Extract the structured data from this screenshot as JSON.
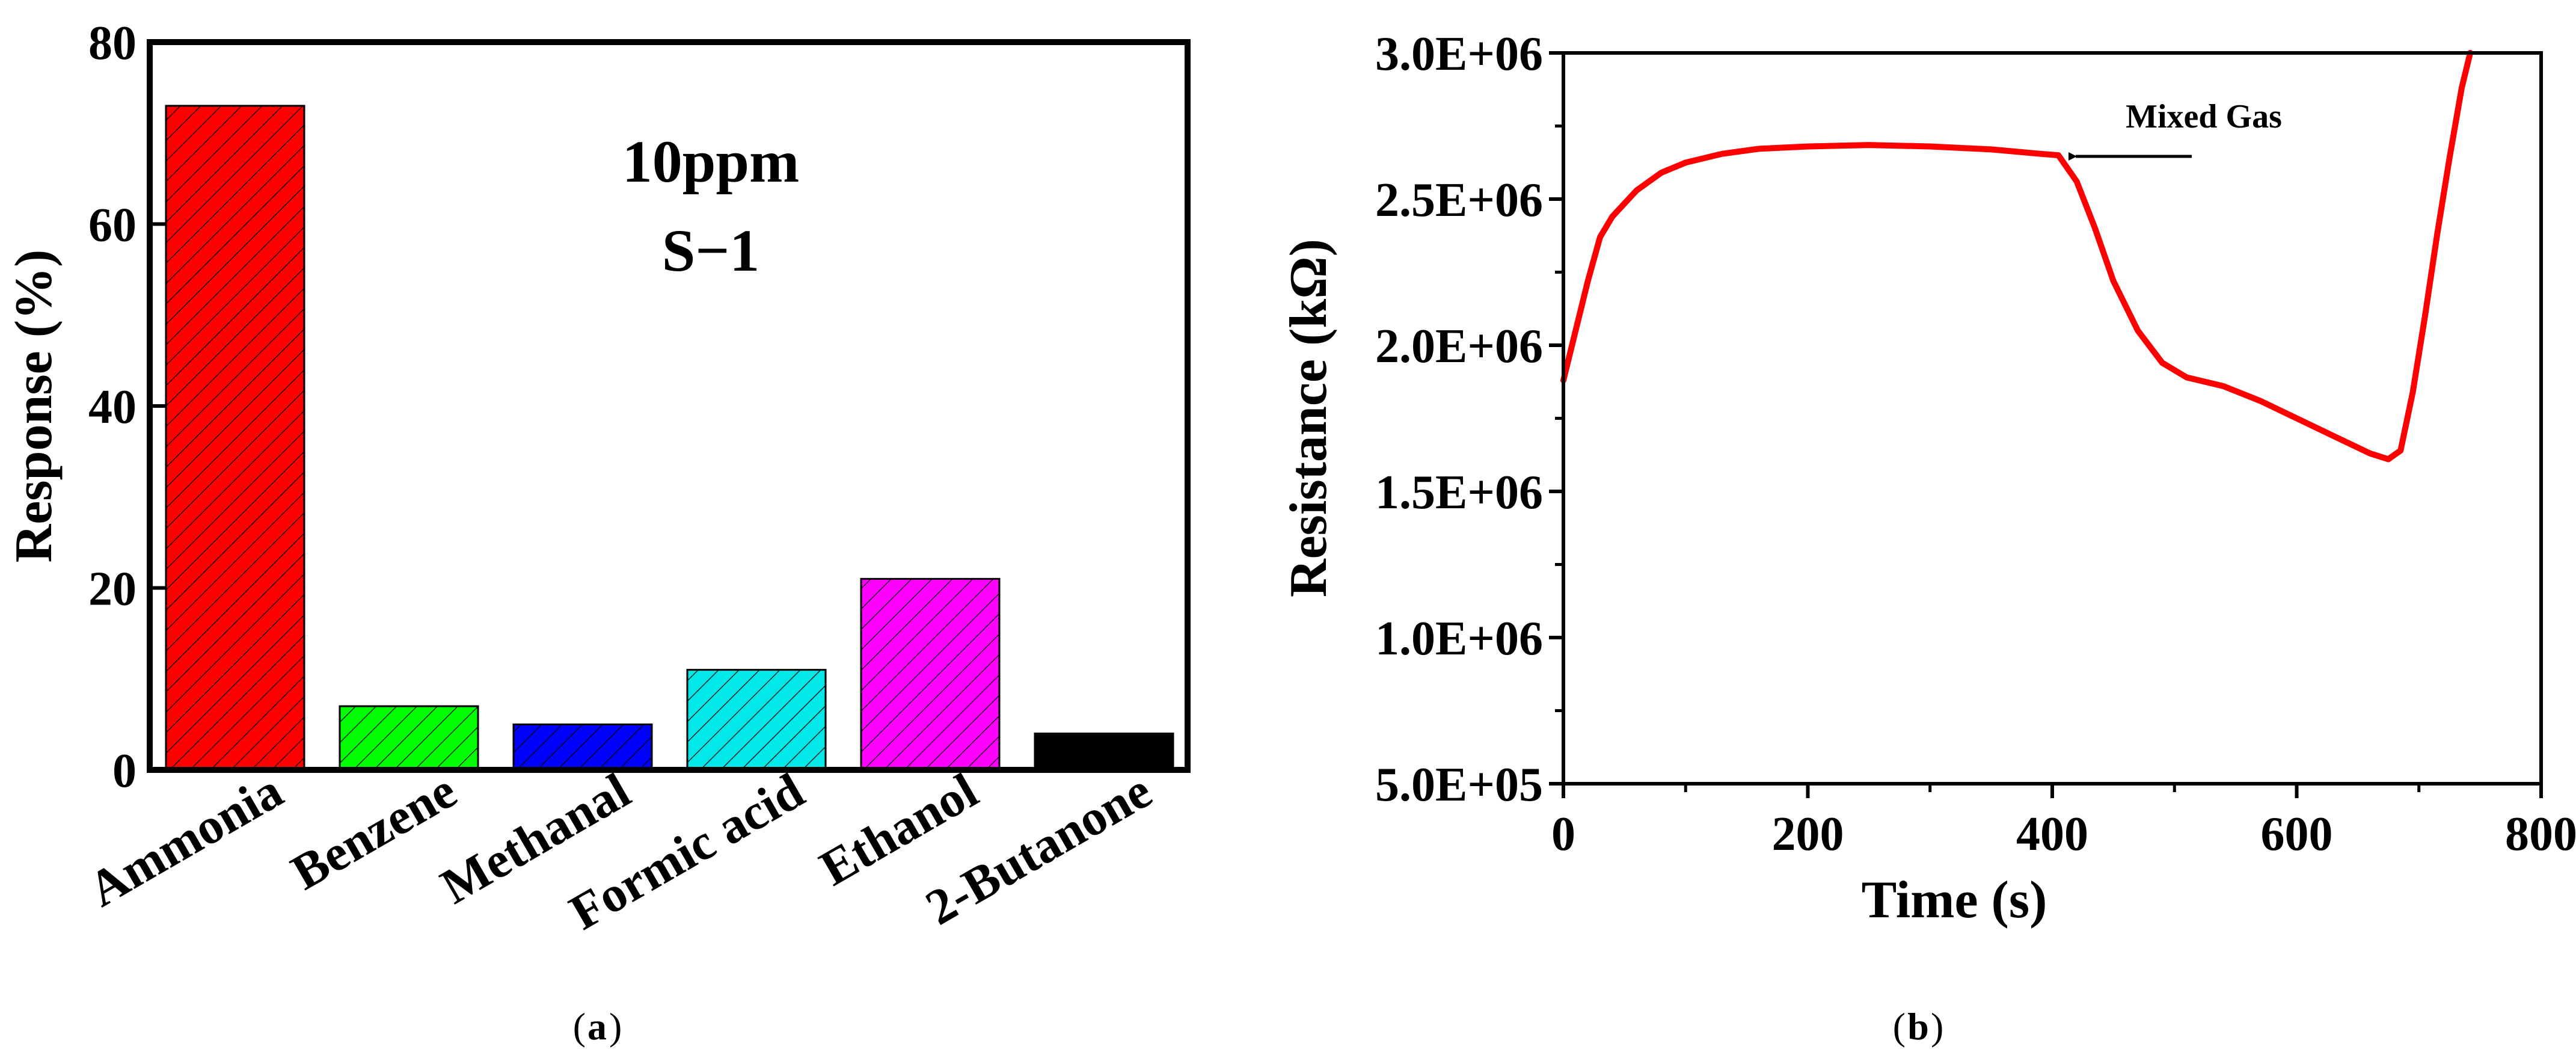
{
  "colors": {
    "ammonia": "#ff0000",
    "benzene": "#00ff00",
    "methanal": "#0000ff",
    "formic_acid": "#00e8e8",
    "ethanol": "#ff00ff",
    "butanone": "#000000",
    "line": "#ff0000"
  },
  "panel_a": {
    "caption_letter": "a",
    "annotation_line1": "10ppm",
    "annotation_line2": "S−1"
  },
  "panel_b": {
    "caption_letter": "b",
    "arrow_label": "Mixed Gas"
  },
  "chart_data": [
    {
      "type": "bar",
      "title": "",
      "xlabel": "",
      "ylabel": "Response (%)",
      "ylim": [
        0,
        80
      ],
      "yticks": [
        "0",
        "20",
        "40",
        "60",
        "80"
      ],
      "categories": [
        "Ammonia",
        "Benzene",
        "Methanal",
        "Formic acid",
        "Ethanol",
        "2-Butanone"
      ],
      "values": [
        73,
        7,
        5,
        11,
        21,
        4
      ],
      "grid": false,
      "pattern": "diagonal hatch"
    },
    {
      "type": "line",
      "title": "",
      "xlabel": "Time (s)",
      "ylabel": "Resistance (kΩ)",
      "xlim": [
        0,
        800
      ],
      "ylim": [
        500000,
        3000000
      ],
      "xticks": [
        "0",
        "200",
        "400",
        "600",
        "800"
      ],
      "yticks": [
        "5.0E+05",
        "1.0E+06",
        "1.5E+06",
        "2.0E+06",
        "2.5E+06",
        "3.0E+06"
      ],
      "grid": false,
      "series": [
        {
          "x": [
            0,
            10,
            20,
            30,
            40,
            60,
            80,
            100,
            130,
            160,
            200,
            250,
            300,
            350,
            390,
            405,
            420,
            435,
            450,
            470,
            490,
            510,
            540,
            570,
            600,
            630,
            660,
            675,
            685,
            695,
            705,
            715,
            725,
            735,
            742
          ],
          "y": [
            1880000,
            2050000,
            2220000,
            2370000,
            2440000,
            2530000,
            2590000,
            2625000,
            2655000,
            2672000,
            2680000,
            2685000,
            2680000,
            2670000,
            2655000,
            2650000,
            2560000,
            2400000,
            2220000,
            2050000,
            1940000,
            1890000,
            1860000,
            1810000,
            1750000,
            1690000,
            1630000,
            1610000,
            1640000,
            1840000,
            2100000,
            2380000,
            2640000,
            2880000,
            3000000
          ]
        }
      ],
      "annotations": [
        {
          "text": "Mixed Gas",
          "points_to_x": 410,
          "points_to_y": 2650000
        }
      ]
    }
  ]
}
